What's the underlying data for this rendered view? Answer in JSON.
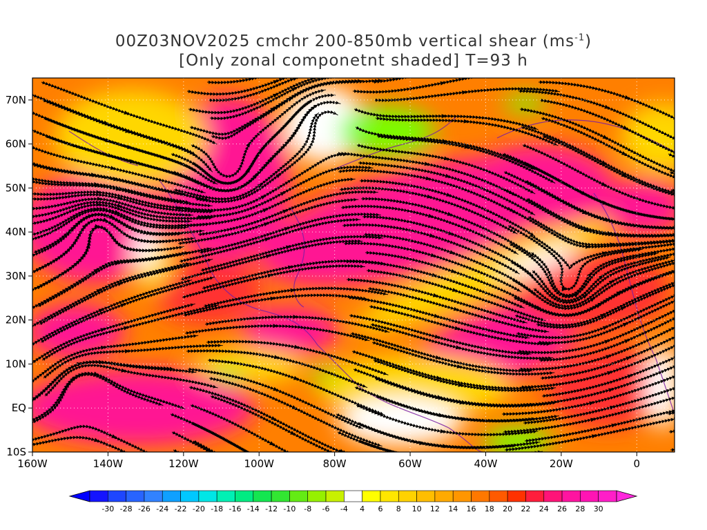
{
  "title": {
    "line1_prefix": "00Z03NOV2025 cmchr 200-850mb vertical shear (ms",
    "line1_sup": "-1",
    "line1_suffix": ")",
    "line2": "[Only zonal componetnt shaded] T=93 h"
  },
  "map": {
    "lon_range": [
      -160,
      10
    ],
    "lat_range": [
      -10,
      75
    ],
    "lat_ticks": [
      {
        "value": 70,
        "label": "70N"
      },
      {
        "value": 60,
        "label": "60N"
      },
      {
        "value": 50,
        "label": "50N"
      },
      {
        "value": 40,
        "label": "40N"
      },
      {
        "value": 30,
        "label": "30N"
      },
      {
        "value": 20,
        "label": "20N"
      },
      {
        "value": 10,
        "label": "10N"
      },
      {
        "value": 0,
        "label": "EQ"
      },
      {
        "value": -10,
        "label": "10S"
      }
    ],
    "lon_ticks": [
      {
        "value": -160,
        "label": "160W"
      },
      {
        "value": -140,
        "label": "140W"
      },
      {
        "value": -120,
        "label": "120W"
      },
      {
        "value": -100,
        "label": "100W"
      },
      {
        "value": -80,
        "label": "80W"
      },
      {
        "value": -60,
        "label": "60W"
      },
      {
        "value": -40,
        "label": "40W"
      },
      {
        "value": -20,
        "label": "20W"
      },
      {
        "value": 0,
        "label": "0"
      }
    ],
    "colors": {
      "strong_positive": "#ff1493",
      "positive_high": "#ff3232",
      "positive_mid": "#ff7f00",
      "positive_low": "#ffd700",
      "near_zero": "#ffffff",
      "negative_low": "#7cfc00",
      "streamline": "#000000",
      "coastline": "#7a1fa2"
    }
  },
  "colorbar": {
    "labels": [
      "-30",
      "-28",
      "-26",
      "-24",
      "-22",
      "-20",
      "-18",
      "-16",
      "-14",
      "-12",
      "-10",
      "-8",
      "-6",
      "-4",
      "4",
      "6",
      "8",
      "10",
      "12",
      "14",
      "16",
      "18",
      "20",
      "22",
      "24",
      "26",
      "28",
      "30"
    ],
    "colors": [
      "#1414ff",
      "#1e46ff",
      "#2864ff",
      "#3282ff",
      "#0fa0ff",
      "#00c8ff",
      "#00e6e6",
      "#00f0b4",
      "#00eb82",
      "#14e650",
      "#32e632",
      "#64eb14",
      "#96f000",
      "#c8f000",
      "#ffffff",
      "#ffff00",
      "#ffe600",
      "#ffd200",
      "#ffbe00",
      "#ffaa00",
      "#ff9600",
      "#ff7800",
      "#ff5a00",
      "#ff3200",
      "#ff1e3c",
      "#ff1478",
      "#ff14a0",
      "#ff14b4",
      "#ff1ec8"
    ],
    "left_triangle_color": "#0000ff",
    "right_triangle_color": "#ff28dc"
  }
}
